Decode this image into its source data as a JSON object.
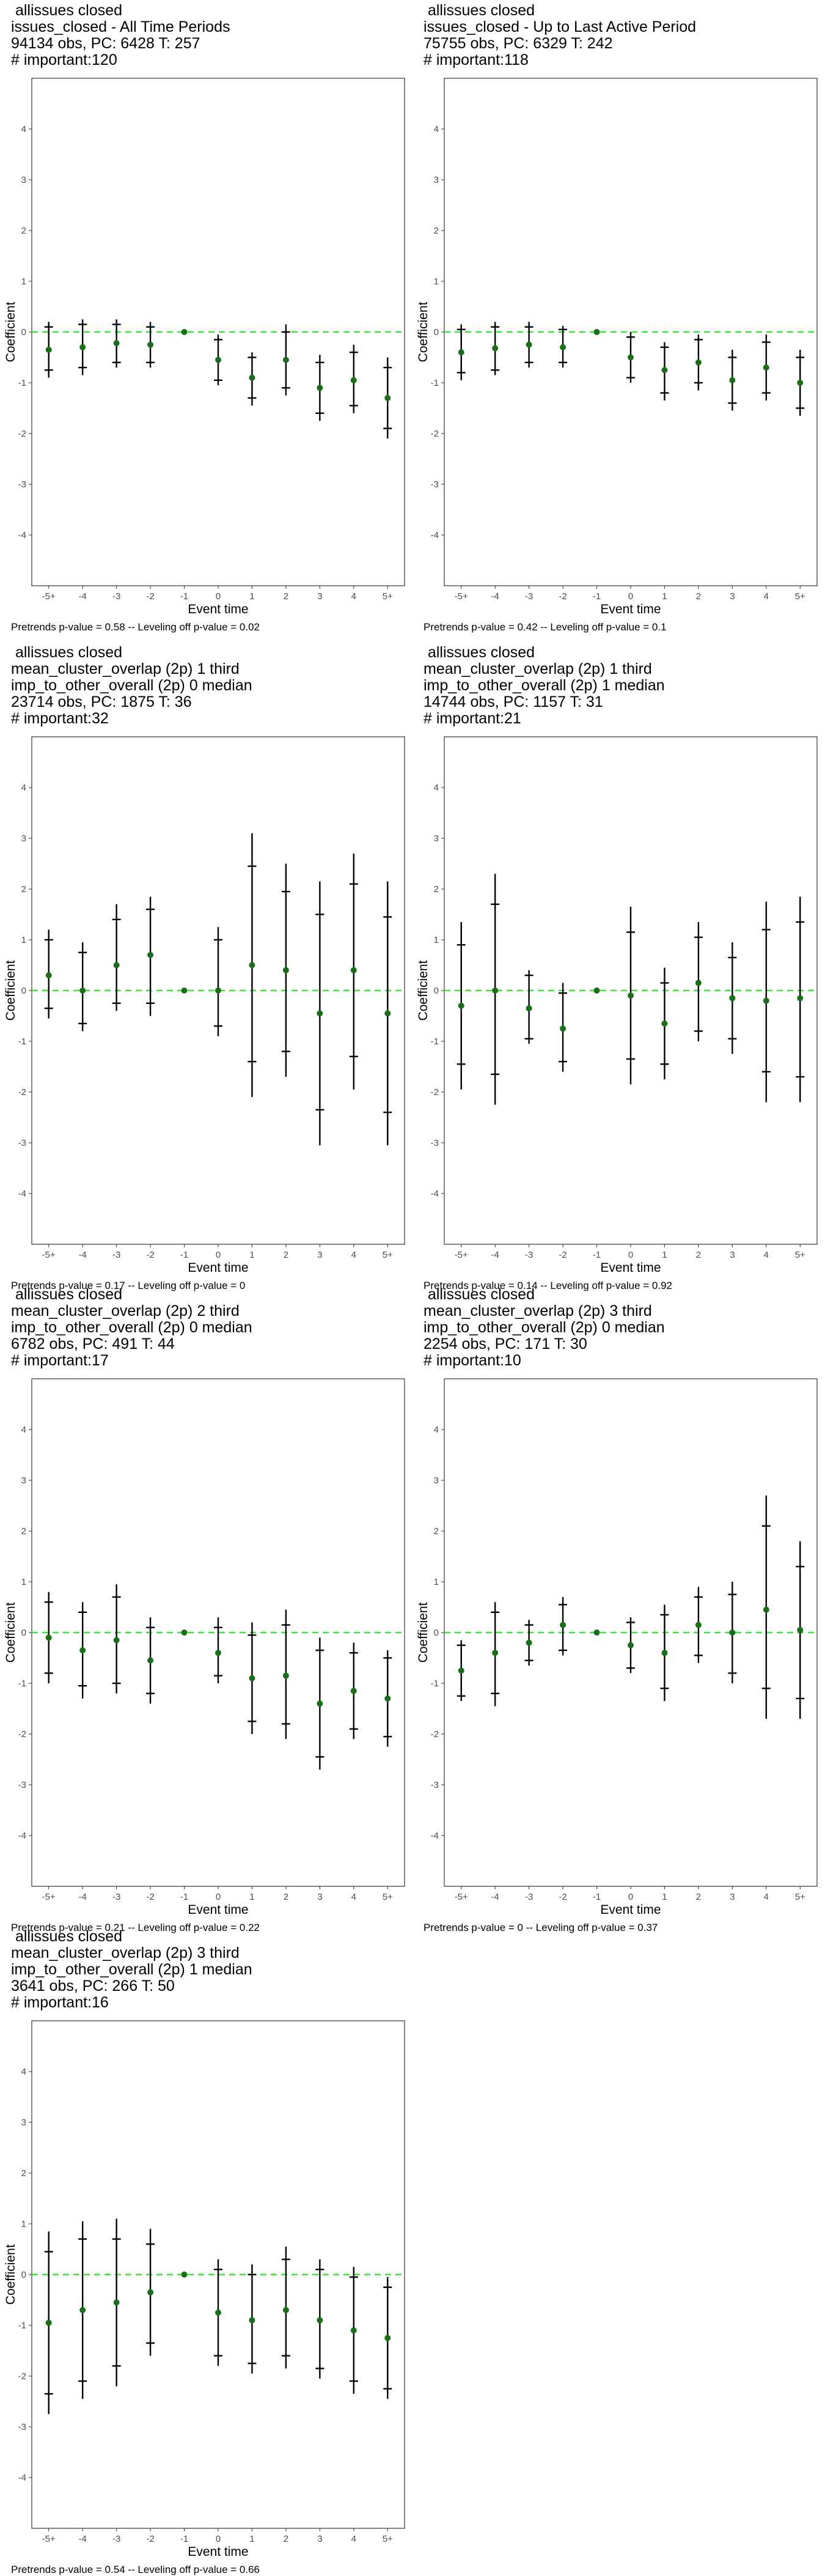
{
  "event_labels": [
    "-5+",
    "-4",
    "-3",
    "-2",
    "-1",
    "0",
    "1",
    "2",
    "3",
    "4",
    "5+"
  ],
  "axis": {
    "ylabel": "Coefficient",
    "xlabel": "Event time",
    "yticks": [
      -4,
      -3,
      -2,
      -1,
      0,
      1,
      2,
      3,
      4
    ],
    "ylim": [
      -5,
      5
    ]
  },
  "colors": {
    "point": "#1a6e1a",
    "zero_line": "#39e639",
    "bar": "#000000",
    "frame": "#333333"
  },
  "chart_data": [
    {
      "type": "scatter",
      "title_lines": [
        "allissues closed",
        "issues_closed - All Time Periods",
        "94134 obs, PC: 6428 T: 257",
        "# important:120"
      ],
      "note": "Pretrends p-value = 0.58 -- Leveling off p-value = 0.02",
      "points": [
        {
          "x": "-5+",
          "y": -0.35,
          "ci95": [
            -0.9,
            0.2
          ],
          "ci90": [
            -0.75,
            0.1
          ]
        },
        {
          "x": "-4",
          "y": -0.3,
          "ci95": [
            -0.85,
            0.25
          ],
          "ci90": [
            -0.7,
            0.15
          ]
        },
        {
          "x": "-3",
          "y": -0.22,
          "ci95": [
            -0.7,
            0.25
          ],
          "ci90": [
            -0.6,
            0.15
          ]
        },
        {
          "x": "-2",
          "y": -0.25,
          "ci95": [
            -0.7,
            0.2
          ],
          "ci90": [
            -0.6,
            0.1
          ]
        },
        {
          "x": "-1",
          "y": 0,
          "ci95": null,
          "ci90": null
        },
        {
          "x": "0",
          "y": -0.55,
          "ci95": [
            -1.05,
            -0.05
          ],
          "ci90": [
            -0.95,
            -0.15
          ]
        },
        {
          "x": "1",
          "y": -0.9,
          "ci95": [
            -1.45,
            -0.4
          ],
          "ci90": [
            -1.3,
            -0.5
          ]
        },
        {
          "x": "2",
          "y": -0.55,
          "ci95": [
            -1.25,
            0.15
          ],
          "ci90": [
            -1.1,
            0.0
          ]
        },
        {
          "x": "3",
          "y": -1.1,
          "ci95": [
            -1.75,
            -0.45
          ],
          "ci90": [
            -1.6,
            -0.6
          ]
        },
        {
          "x": "4",
          "y": -0.95,
          "ci95": [
            -1.6,
            -0.25
          ],
          "ci90": [
            -1.45,
            -0.4
          ]
        },
        {
          "x": "5+",
          "y": -1.3,
          "ci95": [
            -2.1,
            -0.5
          ],
          "ci90": [
            -1.9,
            -0.7
          ]
        }
      ]
    },
    {
      "type": "scatter",
      "title_lines": [
        "allissues closed",
        "issues_closed - Up to Last Active Period",
        "75755 obs, PC: 6329 T: 242",
        "# important:118"
      ],
      "note": "Pretrends p-value = 0.42 -- Leveling off p-value = 0.1",
      "points": [
        {
          "x": "-5+",
          "y": -0.4,
          "ci95": [
            -0.95,
            0.15
          ],
          "ci90": [
            -0.8,
            0.05
          ]
        },
        {
          "x": "-4",
          "y": -0.32,
          "ci95": [
            -0.85,
            0.2
          ],
          "ci90": [
            -0.75,
            0.1
          ]
        },
        {
          "x": "-3",
          "y": -0.25,
          "ci95": [
            -0.7,
            0.2
          ],
          "ci90": [
            -0.6,
            0.1
          ]
        },
        {
          "x": "-2",
          "y": -0.3,
          "ci95": [
            -0.7,
            0.12
          ],
          "ci90": [
            -0.6,
            0.05
          ]
        },
        {
          "x": "-1",
          "y": 0,
          "ci95": null,
          "ci90": null
        },
        {
          "x": "0",
          "y": -0.5,
          "ci95": [
            -1.0,
            0.0
          ],
          "ci90": [
            -0.9,
            -0.1
          ]
        },
        {
          "x": "1",
          "y": -0.75,
          "ci95": [
            -1.35,
            -0.2
          ],
          "ci90": [
            -1.2,
            -0.3
          ]
        },
        {
          "x": "2",
          "y": -0.6,
          "ci95": [
            -1.15,
            -0.05
          ],
          "ci90": [
            -1.0,
            -0.15
          ]
        },
        {
          "x": "3",
          "y": -0.95,
          "ci95": [
            -1.55,
            -0.35
          ],
          "ci90": [
            -1.4,
            -0.5
          ]
        },
        {
          "x": "4",
          "y": -0.7,
          "ci95": [
            -1.35,
            -0.05
          ],
          "ci90": [
            -1.2,
            -0.2
          ]
        },
        {
          "x": "5+",
          "y": -1.0,
          "ci95": [
            -1.65,
            -0.35
          ],
          "ci90": [
            -1.5,
            -0.5
          ]
        }
      ]
    },
    {
      "type": "scatter",
      "title_lines": [
        "allissues closed",
        "mean_cluster_overlap (2p) 1 third",
        "imp_to_other_overall (2p) 0 median",
        "23714 obs, PC: 1875 T: 36",
        "# important:32"
      ],
      "note": "Pretrends p-value = 0.17 -- Leveling off p-value = 0",
      "points": [
        {
          "x": "-5+",
          "y": 0.3,
          "ci95": [
            -0.55,
            1.2
          ],
          "ci90": [
            -0.35,
            1.0
          ]
        },
        {
          "x": "-4",
          "y": 0.0,
          "ci95": [
            -0.8,
            0.95
          ],
          "ci90": [
            -0.65,
            0.75
          ]
        },
        {
          "x": "-3",
          "y": 0.5,
          "ci95": [
            -0.4,
            1.7
          ],
          "ci90": [
            -0.25,
            1.4
          ]
        },
        {
          "x": "-2",
          "y": 0.7,
          "ci95": [
            -0.5,
            1.85
          ],
          "ci90": [
            -0.25,
            1.6
          ]
        },
        {
          "x": "-1",
          "y": 0,
          "ci95": null,
          "ci90": null
        },
        {
          "x": "0",
          "y": 0.0,
          "ci95": [
            -0.9,
            1.25
          ],
          "ci90": [
            -0.7,
            1.0
          ]
        },
        {
          "x": "1",
          "y": 0.5,
          "ci95": [
            -2.1,
            3.1
          ],
          "ci90": [
            -1.4,
            2.45
          ]
        },
        {
          "x": "2",
          "y": 0.4,
          "ci95": [
            -1.7,
            2.5
          ],
          "ci90": [
            -1.2,
            1.95
          ]
        },
        {
          "x": "3",
          "y": -0.45,
          "ci95": [
            -3.05,
            2.15
          ],
          "ci90": [
            -2.35,
            1.5
          ]
        },
        {
          "x": "4",
          "y": 0.4,
          "ci95": [
            -1.95,
            2.7
          ],
          "ci90": [
            -1.3,
            2.1
          ]
        },
        {
          "x": "5+",
          "y": -0.45,
          "ci95": [
            -3.05,
            2.15
          ],
          "ci90": [
            -2.4,
            1.45
          ]
        }
      ]
    },
    {
      "type": "scatter",
      "title_lines": [
        "allissues closed",
        "mean_cluster_overlap (2p) 1 third",
        "imp_to_other_overall (2p) 1 median",
        "14744 obs, PC: 1157 T: 31",
        "# important:21"
      ],
      "note": "Pretrends p-value = 0.14 -- Leveling off p-value = 0.92",
      "points": [
        {
          "x": "-5+",
          "y": -0.3,
          "ci95": [
            -1.95,
            1.35
          ],
          "ci90": [
            -1.45,
            0.9
          ]
        },
        {
          "x": "-4",
          "y": 0.0,
          "ci95": [
            -2.25,
            2.3
          ],
          "ci90": [
            -1.65,
            1.7
          ]
        },
        {
          "x": "-3",
          "y": -0.35,
          "ci95": [
            -1.05,
            0.4
          ],
          "ci90": [
            -0.95,
            0.3
          ]
        },
        {
          "x": "-2",
          "y": -0.75,
          "ci95": [
            -1.6,
            0.15
          ],
          "ci90": [
            -1.4,
            -0.05
          ]
        },
        {
          "x": "-1",
          "y": 0,
          "ci95": null,
          "ci90": null
        },
        {
          "x": "0",
          "y": -0.1,
          "ci95": [
            -1.85,
            1.65
          ],
          "ci90": [
            -1.35,
            1.15
          ]
        },
        {
          "x": "1",
          "y": -0.65,
          "ci95": [
            -1.75,
            0.45
          ],
          "ci90": [
            -1.45,
            0.15
          ]
        },
        {
          "x": "2",
          "y": 0.15,
          "ci95": [
            -1.0,
            1.35
          ],
          "ci90": [
            -0.8,
            1.05
          ]
        },
        {
          "x": "3",
          "y": -0.15,
          "ci95": [
            -1.25,
            0.95
          ],
          "ci90": [
            -0.95,
            0.65
          ]
        },
        {
          "x": "4",
          "y": -0.2,
          "ci95": [
            -2.2,
            1.75
          ],
          "ci90": [
            -1.6,
            1.2
          ]
        },
        {
          "x": "5+",
          "y": -0.15,
          "ci95": [
            -2.2,
            1.85
          ],
          "ci90": [
            -1.7,
            1.35
          ]
        }
      ]
    },
    {
      "type": "scatter",
      "title_lines": [
        "allissues closed",
        "mean_cluster_overlap (2p) 2 third",
        "imp_to_other_overall (2p) 0 median",
        "6782 obs, PC: 491 T: 44",
        "# important:17"
      ],
      "note": "Pretrends p-value = 0.21 -- Leveling off p-value = 0.22",
      "points": [
        {
          "x": "-5+",
          "y": -0.1,
          "ci95": [
            -1.0,
            0.8
          ],
          "ci90": [
            -0.8,
            0.6
          ]
        },
        {
          "x": "-4",
          "y": -0.35,
          "ci95": [
            -1.3,
            0.6
          ],
          "ci90": [
            -1.05,
            0.4
          ]
        },
        {
          "x": "-3",
          "y": -0.15,
          "ci95": [
            -1.2,
            0.95
          ],
          "ci90": [
            -1.0,
            0.7
          ]
        },
        {
          "x": "-2",
          "y": -0.55,
          "ci95": [
            -1.4,
            0.3
          ],
          "ci90": [
            -1.2,
            0.1
          ]
        },
        {
          "x": "-1",
          "y": 0,
          "ci95": null,
          "ci90": null
        },
        {
          "x": "0",
          "y": -0.4,
          "ci95": [
            -1.0,
            0.3
          ],
          "ci90": [
            -0.85,
            0.1
          ]
        },
        {
          "x": "1",
          "y": -0.9,
          "ci95": [
            -2.0,
            0.2
          ],
          "ci90": [
            -1.75,
            -0.05
          ]
        },
        {
          "x": "2",
          "y": -0.85,
          "ci95": [
            -2.1,
            0.45
          ],
          "ci90": [
            -1.8,
            0.15
          ]
        },
        {
          "x": "3",
          "y": -1.4,
          "ci95": [
            -2.7,
            -0.1
          ],
          "ci90": [
            -2.45,
            -0.35
          ]
        },
        {
          "x": "4",
          "y": -1.15,
          "ci95": [
            -2.1,
            -0.2
          ],
          "ci90": [
            -1.9,
            -0.4
          ]
        },
        {
          "x": "5+",
          "y": -1.3,
          "ci95": [
            -2.25,
            -0.35
          ],
          "ci90": [
            -2.05,
            -0.5
          ]
        }
      ]
    },
    {
      "type": "scatter",
      "title_lines": [
        "allissues closed",
        "mean_cluster_overlap (2p) 3 third",
        "imp_to_other_overall (2p) 0 median",
        "2254 obs, PC: 171 T: 30",
        "# important:10"
      ],
      "note": "Pretrends p-value = 0 -- Leveling off p-value = 0.37",
      "points": [
        {
          "x": "-5+",
          "y": -0.75,
          "ci95": [
            -1.35,
            -0.15
          ],
          "ci90": [
            -1.25,
            -0.25
          ]
        },
        {
          "x": "-4",
          "y": -0.4,
          "ci95": [
            -1.45,
            0.6
          ],
          "ci90": [
            -1.2,
            0.4
          ]
        },
        {
          "x": "-3",
          "y": -0.2,
          "ci95": [
            -0.65,
            0.25
          ],
          "ci90": [
            -0.55,
            0.15
          ]
        },
        {
          "x": "-2",
          "y": 0.15,
          "ci95": [
            -0.45,
            0.7
          ],
          "ci90": [
            -0.35,
            0.55
          ]
        },
        {
          "x": "-1",
          "y": 0,
          "ci95": null,
          "ci90": null
        },
        {
          "x": "0",
          "y": -0.25,
          "ci95": [
            -0.8,
            0.3
          ],
          "ci90": [
            -0.7,
            0.2
          ]
        },
        {
          "x": "1",
          "y": -0.4,
          "ci95": [
            -1.35,
            0.55
          ],
          "ci90": [
            -1.1,
            0.35
          ]
        },
        {
          "x": "2",
          "y": 0.15,
          "ci95": [
            -0.6,
            0.9
          ],
          "ci90": [
            -0.45,
            0.7
          ]
        },
        {
          "x": "3",
          "y": 0.0,
          "ci95": [
            -1.0,
            1.0
          ],
          "ci90": [
            -0.8,
            0.75
          ]
        },
        {
          "x": "4",
          "y": 0.45,
          "ci95": [
            -1.7,
            2.7
          ],
          "ci90": [
            -1.1,
            2.1
          ]
        },
        {
          "x": "5+",
          "y": 0.05,
          "ci95": [
            -1.7,
            1.8
          ],
          "ci90": [
            -1.3,
            1.3
          ]
        }
      ]
    },
    {
      "type": "scatter",
      "title_lines": [
        "allissues closed",
        "mean_cluster_overlap (2p) 3 third",
        "imp_to_other_overall (2p) 1 median",
        "3641 obs, PC: 266 T: 50",
        "# important:16"
      ],
      "note": "Pretrends p-value = 0.54 -- Leveling off p-value = 0.66",
      "points": [
        {
          "x": "-5+",
          "y": -0.95,
          "ci95": [
            -2.75,
            0.85
          ],
          "ci90": [
            -2.35,
            0.45
          ]
        },
        {
          "x": "-4",
          "y": -0.7,
          "ci95": [
            -2.45,
            1.05
          ],
          "ci90": [
            -2.1,
            0.7
          ]
        },
        {
          "x": "-3",
          "y": -0.55,
          "ci95": [
            -2.2,
            1.1
          ],
          "ci90": [
            -1.8,
            0.7
          ]
        },
        {
          "x": "-2",
          "y": -0.35,
          "ci95": [
            -1.6,
            0.9
          ],
          "ci90": [
            -1.35,
            0.6
          ]
        },
        {
          "x": "-1",
          "y": 0,
          "ci95": null,
          "ci90": null
        },
        {
          "x": "0",
          "y": -0.75,
          "ci95": [
            -1.8,
            0.3
          ],
          "ci90": [
            -1.6,
            0.1
          ]
        },
        {
          "x": "1",
          "y": -0.9,
          "ci95": [
            -1.95,
            0.2
          ],
          "ci90": [
            -1.75,
            0.0
          ]
        },
        {
          "x": "2",
          "y": -0.7,
          "ci95": [
            -1.85,
            0.55
          ],
          "ci90": [
            -1.6,
            0.3
          ]
        },
        {
          "x": "3",
          "y": -0.9,
          "ci95": [
            -2.05,
            0.3
          ],
          "ci90": [
            -1.85,
            0.1
          ]
        },
        {
          "x": "4",
          "y": -1.1,
          "ci95": [
            -2.35,
            0.15
          ],
          "ci90": [
            -2.1,
            -0.05
          ]
        },
        {
          "x": "5+",
          "y": -1.25,
          "ci95": [
            -2.45,
            -0.05
          ],
          "ci90": [
            -2.25,
            -0.25
          ]
        }
      ]
    }
  ]
}
